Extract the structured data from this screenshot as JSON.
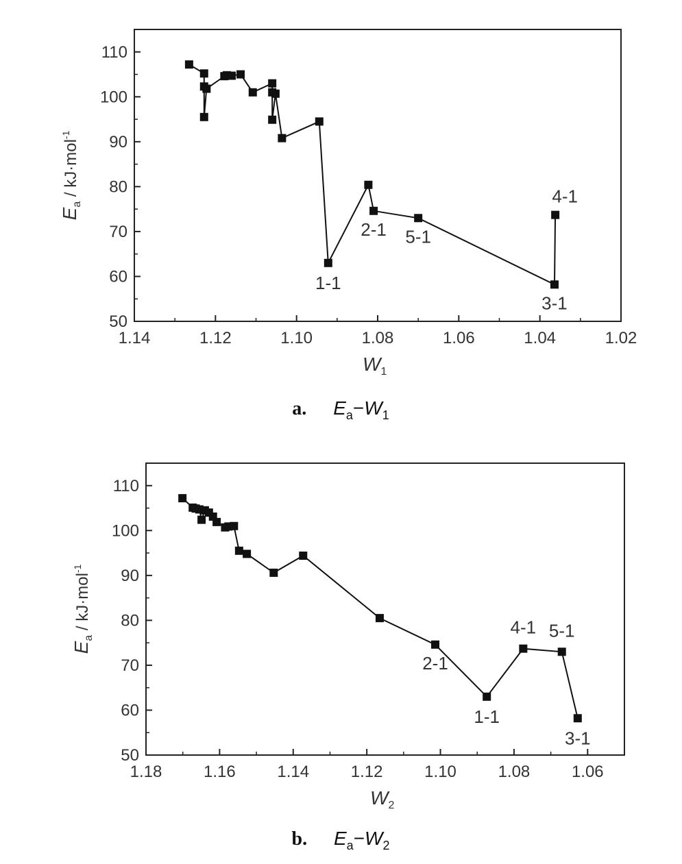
{
  "chart_data": [
    {
      "type": "line",
      "panel_id": "a",
      "caption": {
        "letter": "a.",
        "y_var": "E",
        "y_sub": "a",
        "dash": "−",
        "x_var": "W",
        "x_sub": "1"
      },
      "xlabel": {
        "var": "W",
        "sub": "1"
      },
      "ylabel": {
        "var": "E",
        "sub": "a",
        "rest": " / kJ·mol",
        "sup": "-1"
      },
      "xlim": [
        1.14,
        1.02
      ],
      "ylim": [
        50,
        115
      ],
      "x_ticks": [
        "1.14",
        "1.12",
        "1.10",
        "1.08",
        "1.06",
        "1.04",
        "1.02"
      ],
      "x_tick_values": [
        1.14,
        1.12,
        1.1,
        1.08,
        1.06,
        1.04,
        1.02
      ],
      "y_ticks": [
        "50",
        "60",
        "70",
        "80",
        "90",
        "100",
        "110"
      ],
      "y_tick_values": [
        50,
        60,
        70,
        80,
        90,
        100,
        110
      ],
      "series": [
        {
          "x": [
            1.1265,
            1.1228,
            1.1228,
            1.1228,
            1.1222,
            1.1178,
            1.1172,
            1.116,
            1.1138,
            1.1108,
            1.106,
            1.106,
            1.106,
            1.1052,
            1.1036,
            1.0944,
            1.0922,
            1.0823,
            1.081,
            1.07,
            1.0364,
            1.0362
          ],
          "y": [
            107.2,
            105.2,
            102.3,
            95.5,
            101.8,
            104.6,
            104.8,
            104.7,
            105.0,
            101.0,
            103.0,
            101.0,
            94.9,
            100.7,
            90.8,
            94.5,
            63.0,
            80.4,
            74.6,
            73.0,
            58.2,
            73.7
          ]
        }
      ],
      "annotations": [
        {
          "text": "1-1",
          "x": 1.0922,
          "y": 63.0
        },
        {
          "text": "2-1",
          "x": 1.081,
          "y": 74.6
        },
        {
          "text": "5-1",
          "x": 1.07,
          "y": 73.0
        },
        {
          "text": "3-1",
          "x": 1.0364,
          "y": 58.2
        },
        {
          "text": "4-1",
          "x": 1.0362,
          "y": 73.7
        }
      ]
    },
    {
      "type": "line",
      "panel_id": "b",
      "caption": {
        "letter": "b.",
        "y_var": "E",
        "y_sub": "a",
        "dash": "−",
        "x_var": "W",
        "x_sub": "2"
      },
      "xlabel": {
        "var": "W",
        "sub": "2"
      },
      "ylabel": {
        "var": "E",
        "sub": "a",
        "rest": " / kJ·mol",
        "sup": "-1"
      },
      "xlim": [
        1.18,
        1.05
      ],
      "ylim": [
        50,
        115
      ],
      "x_ticks": [
        "1.18",
        "1.16",
        "1.14",
        "1.12",
        "1.10",
        "1.08",
        "1.06"
      ],
      "x_tick_values": [
        1.18,
        1.16,
        1.14,
        1.12,
        1.1,
        1.08,
        1.06
      ],
      "y_ticks": [
        "50",
        "60",
        "70",
        "80",
        "90",
        "100",
        "110"
      ],
      "y_tick_values": [
        50,
        60,
        70,
        80,
        90,
        100,
        110
      ],
      "series": [
        {
          "x": [
            1.1701,
            1.1673,
            1.1665,
            1.1655,
            1.1649,
            1.164,
            1.1629,
            1.1618,
            1.1608,
            1.1585,
            1.1576,
            1.1561,
            1.1547,
            1.1526,
            1.1453,
            1.1373,
            1.1165,
            1.1014,
            1.0874,
            1.0775,
            1.067,
            1.0627
          ],
          "y": [
            107.2,
            105.1,
            104.9,
            104.7,
            102.4,
            104.5,
            104.0,
            103.1,
            101.9,
            100.7,
            100.9,
            101.0,
            95.5,
            94.8,
            90.6,
            94.4,
            80.5,
            74.6,
            63.0,
            73.7,
            73.0,
            58.2
          ]
        }
      ],
      "annotations": [
        {
          "text": "2-1",
          "x": 1.1014,
          "y": 74.6
        },
        {
          "text": "1-1",
          "x": 1.0874,
          "y": 63.0
        },
        {
          "text": "4-1",
          "x": 1.0775,
          "y": 73.7
        },
        {
          "text": "5-1",
          "x": 1.067,
          "y": 73.0
        },
        {
          "text": "3-1",
          "x": 1.0627,
          "y": 58.2
        }
      ]
    }
  ]
}
